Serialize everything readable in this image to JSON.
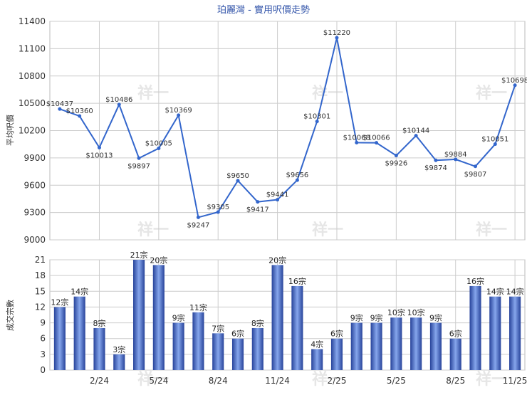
{
  "chart_data": [
    {
      "type": "line",
      "title": "珀麗灣 - 實用呎價走勢",
      "ylabel": "平均呎價",
      "ylim": [
        9000,
        11400
      ],
      "yticks": [
        9000,
        9300,
        9600,
        9900,
        10200,
        10500,
        10800,
        11100,
        11400
      ],
      "grid": true,
      "color": "#3366cc",
      "values": [
        10437,
        10360,
        10013,
        10486,
        9897,
        10005,
        10369,
        9247,
        9305,
        9650,
        9417,
        9441,
        9656,
        10301,
        11220,
        10068,
        10066,
        9926,
        10144,
        9874,
        9884,
        9807,
        10051,
        10698
      ],
      "labels": [
        "$10437",
        "$10360",
        "$10013",
        "$10486",
        "$9897",
        "$10005",
        "$10369",
        "$9247",
        "$9305",
        "$9650",
        "$9417",
        "$9441",
        "$9656",
        "$10301",
        "$11220",
        "$10068",
        "$10066",
        "$9926",
        "$10144",
        "$9874",
        "$9884",
        "$9807",
        "$10051",
        "$10698"
      ]
    },
    {
      "type": "bar",
      "ylabel": "成交宗數",
      "ylim": [
        0,
        21
      ],
      "yticks": [
        0,
        3,
        6,
        9,
        12,
        15,
        18,
        21
      ],
      "grid": true,
      "color": "#3b5fc4",
      "values": [
        12,
        14,
        8,
        3,
        21,
        20,
        9,
        11,
        7,
        6,
        8,
        20,
        16,
        4,
        6,
        9,
        9,
        10,
        10,
        9,
        6,
        16,
        14,
        14
      ],
      "labels": [
        "12宗",
        "14宗",
        "8宗",
        "3宗",
        "21宗",
        "20宗",
        "9宗",
        "11宗",
        "7宗",
        "6宗",
        "8宗",
        "20宗",
        "16宗",
        "4宗",
        "6宗",
        "9宗",
        "9宗",
        "10宗",
        "10宗",
        "9宗",
        "6宗",
        "16宗",
        "14宗",
        "14宗"
      ],
      "xticks": [
        {
          "index": 2,
          "label": "2/24"
        },
        {
          "index": 5,
          "label": "5/24"
        },
        {
          "index": 8,
          "label": "8/24"
        },
        {
          "index": 11,
          "label": "11/24"
        },
        {
          "index": 14,
          "label": "2/25"
        },
        {
          "index": 17,
          "label": "5/25"
        },
        {
          "index": 20,
          "label": "8/25"
        },
        {
          "index": 23,
          "label": "11/25"
        }
      ]
    }
  ],
  "watermark": "祥一"
}
